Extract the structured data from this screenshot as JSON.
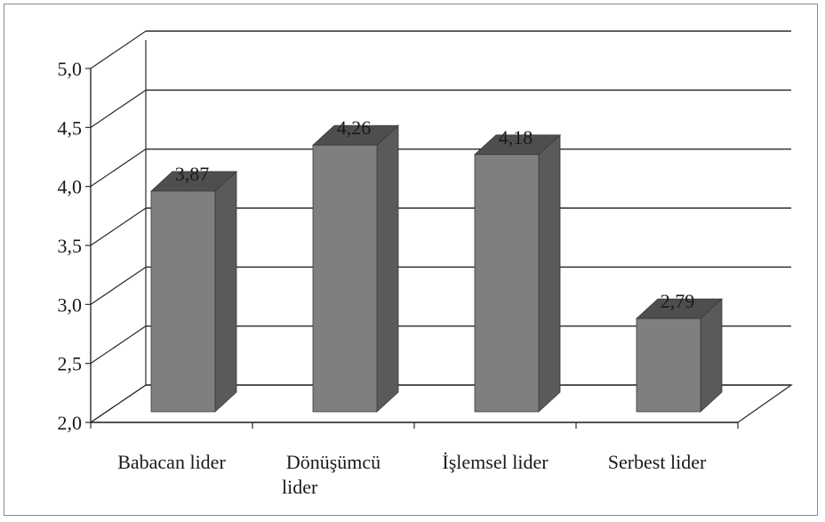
{
  "chart_data": {
    "type": "bar",
    "categories": [
      [
        "Babacan lider"
      ],
      [
        "Dönüşümcü",
        "lider"
      ],
      [
        "İşlemsel lider"
      ],
      [
        "Serbest lider"
      ]
    ],
    "values": [
      3.87,
      4.26,
      4.18,
      2.79
    ],
    "value_labels": [
      "3,87",
      "4,26",
      "4,18",
      "2,79"
    ],
    "ylim": [
      2.0,
      5.0
    ],
    "yticks": [
      "2,0",
      "2,5",
      "3,0",
      "3,5",
      "4,0",
      "4,5",
      "5,0"
    ],
    "tick_step": 0.5,
    "grid": true,
    "legend": "none",
    "style": "3d-column",
    "colors": {
      "bar_front": "#7f7f81",
      "bar_side": "#5a5a5c",
      "bar_top": "#4e4e50",
      "gridline": "#2a2a2a",
      "axis": "#2a2a2a"
    }
  }
}
